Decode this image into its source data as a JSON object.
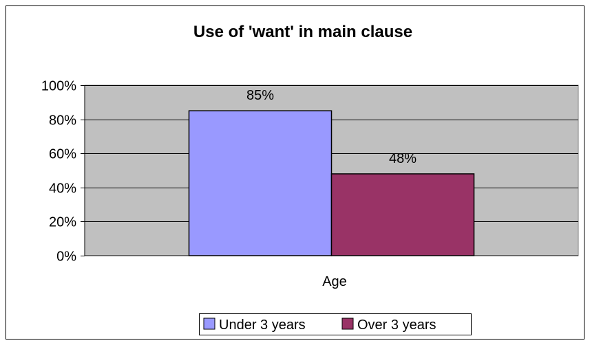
{
  "chart_data": {
    "type": "bar",
    "title": "Use of 'want' in main clause",
    "categories": [
      "Age"
    ],
    "series": [
      {
        "name": "Under 3 years",
        "values": [
          85
        ],
        "label": "85%",
        "color": "#9999ff"
      },
      {
        "name": "Over 3 years",
        "values": [
          48
        ],
        "label": "48%",
        "color": "#993366"
      }
    ],
    "xlabel": "",
    "ylabel": "",
    "ylim": [
      0,
      100
    ],
    "yticks": [
      {
        "value": 0,
        "label": "0%"
      },
      {
        "value": 20,
        "label": "20%"
      },
      {
        "value": 40,
        "label": "40%"
      },
      {
        "value": 60,
        "label": "60%"
      },
      {
        "value": 80,
        "label": "80%"
      },
      {
        "value": 100,
        "label": "100%"
      }
    ],
    "grid": true,
    "legend": "bottom",
    "plot_background": "#c0c0c0"
  }
}
